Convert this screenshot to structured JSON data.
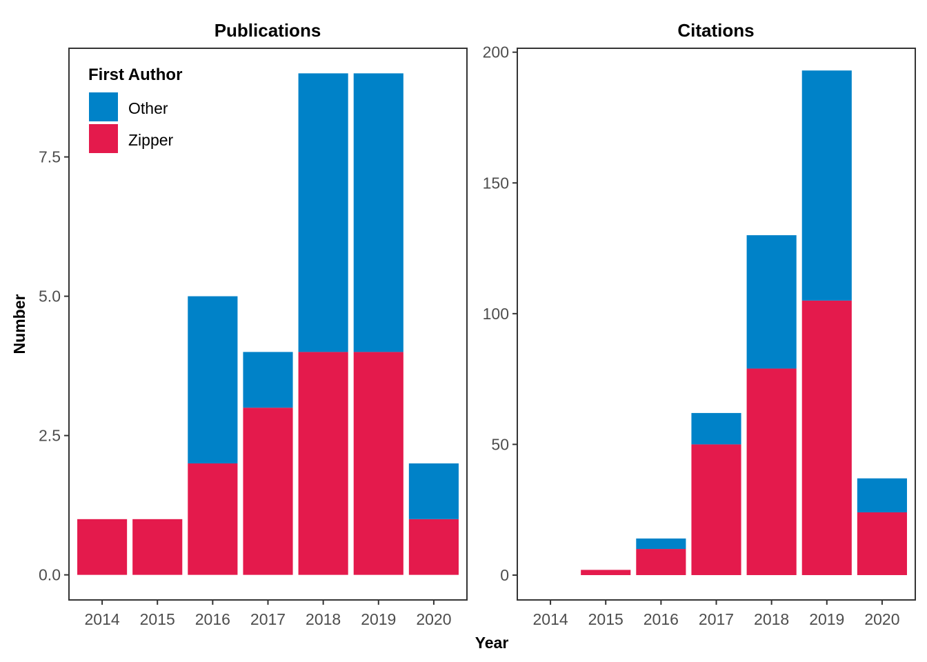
{
  "chart_data": [
    {
      "type": "bar",
      "stacked": true,
      "title": "Publications",
      "xlabel": "Year",
      "ylabel": "Number",
      "categories": [
        "2014",
        "2015",
        "2016",
        "2017",
        "2018",
        "2019",
        "2020"
      ],
      "series": [
        {
          "name": "Zipper",
          "color": "#E41A4C",
          "values": [
            1,
            1,
            2,
            3,
            4,
            4,
            1
          ]
        },
        {
          "name": "Other",
          "color": "#0082C8",
          "values": [
            0,
            0,
            3,
            1,
            5,
            5,
            1
          ]
        }
      ],
      "yticks": [
        0.0,
        2.5,
        5.0,
        7.5
      ],
      "ytick_labels": [
        "0.0",
        "2.5",
        "5.0",
        "7.5"
      ],
      "ylim": [
        -0.45,
        9.45
      ],
      "grid": false,
      "legend": {
        "title": "First Author",
        "position": "top-left",
        "items": [
          "Other",
          "Zipper"
        ]
      }
    },
    {
      "type": "bar",
      "stacked": true,
      "title": "Citations",
      "xlabel": "Year",
      "ylabel": "Number",
      "categories": [
        "2014",
        "2015",
        "2016",
        "2017",
        "2018",
        "2019",
        "2020"
      ],
      "series": [
        {
          "name": "Zipper",
          "color": "#E41A4C",
          "values": [
            0,
            2,
            10,
            50,
            79,
            105,
            24
          ]
        },
        {
          "name": "Other",
          "color": "#0082C8",
          "values": [
            0,
            0,
            4,
            12,
            51,
            88,
            13
          ]
        }
      ],
      "yticks": [
        0,
        50,
        100,
        150,
        200
      ],
      "ytick_labels": [
        "0",
        "50",
        "100",
        "150",
        "200"
      ],
      "ylim": [
        -9.5,
        201.5
      ],
      "grid": false
    }
  ],
  "shared_axes": {
    "xlabel": "Year",
    "ylabel": "Number"
  }
}
